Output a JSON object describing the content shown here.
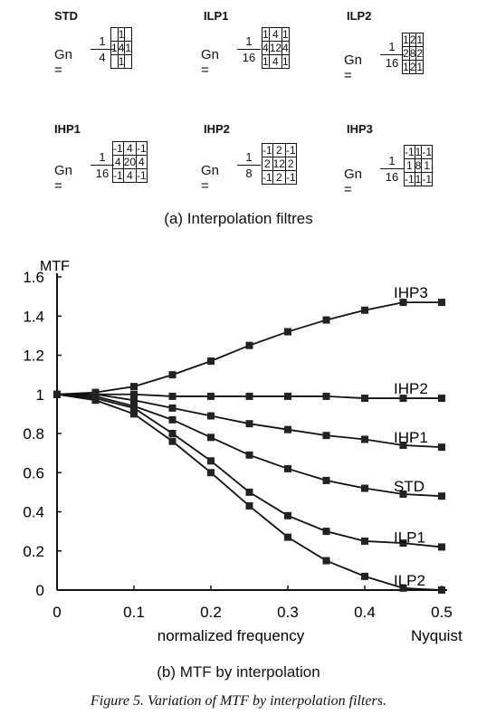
{
  "filters": [
    {
      "name": "STD",
      "gn": "Gn =",
      "num": "1",
      "den": "4",
      "kernel": [
        [
          "",
          "1",
          ""
        ],
        [
          "1",
          "4",
          "1"
        ],
        [
          "",
          "1",
          ""
        ]
      ]
    },
    {
      "name": "ILP1",
      "gn": "Gn =",
      "num": "1",
      "den": "16",
      "kernel": [
        [
          "1",
          "4",
          "1"
        ],
        [
          "4",
          "12",
          "4"
        ],
        [
          "1",
          "4",
          "1"
        ]
      ]
    },
    {
      "name": "ILP2",
      "gn": "Gn =",
      "num": "1",
      "den": "16",
      "kernel": [
        [
          "1",
          "2",
          "1"
        ],
        [
          "2",
          "8",
          "2"
        ],
        [
          "1",
          "2",
          "1"
        ]
      ]
    },
    {
      "name": "IHP1",
      "gn": "Gn =",
      "num": "1",
      "den": "16",
      "kernel": [
        [
          "-1",
          "4",
          "-1"
        ],
        [
          "4",
          "20",
          "4"
        ],
        [
          "-1",
          "4",
          "-1"
        ]
      ]
    },
    {
      "name": "IHP2",
      "gn": "Gn =",
      "num": "1",
      "den": "8",
      "kernel": [
        [
          "-1",
          "2",
          "-1"
        ],
        [
          "2",
          "12",
          "2"
        ],
        [
          "-1",
          "2",
          "-1"
        ]
      ]
    },
    {
      "name": "IHP3",
      "gn": "Gn =",
      "num": "1",
      "den": "16",
      "kernel": [
        [
          "-1",
          "1",
          "-1"
        ],
        [
          "1",
          "8",
          "1"
        ],
        [
          "-1",
          "1",
          "-1"
        ]
      ]
    }
  ],
  "caption_a": "(a) Interpolation filtres",
  "caption_b": "(b) MTF by interpolation",
  "figure_caption": "Figure 5. Variation of MTF by interpolation filters.",
  "chart_data": {
    "type": "line",
    "ylabel": "MTF",
    "xlabel": "normalized frequency",
    "x_end_label": "Nyquist",
    "xlim": [
      0,
      0.5
    ],
    "ylim": [
      0,
      1.6
    ],
    "x_ticks": [
      "0",
      "0.1",
      "0.2",
      "0.3",
      "0.4",
      "0.5"
    ],
    "y_ticks": [
      "0",
      "0.2",
      "0.4",
      "0.6",
      "0.8",
      "1",
      "1.2",
      "1.4",
      "1.6"
    ],
    "grid": false,
    "x": [
      0,
      0.05,
      0.1,
      0.15,
      0.2,
      0.25,
      0.3,
      0.35,
      0.4,
      0.45,
      0.5
    ],
    "series": [
      {
        "name": "IHP3",
        "values": [
          1.0,
          1.01,
          1.04,
          1.1,
          1.17,
          1.25,
          1.32,
          1.38,
          1.43,
          1.47,
          1.47
        ]
      },
      {
        "name": "IHP2",
        "values": [
          1.0,
          1.0,
          1.0,
          0.99,
          0.99,
          0.99,
          0.99,
          0.99,
          0.98,
          0.98,
          0.98
        ]
      },
      {
        "name": "IHP1",
        "values": [
          1.0,
          1.0,
          0.97,
          0.93,
          0.89,
          0.85,
          0.82,
          0.79,
          0.77,
          0.74,
          0.73
        ]
      },
      {
        "name": "STD",
        "values": [
          1.0,
          0.99,
          0.94,
          0.87,
          0.78,
          0.69,
          0.62,
          0.56,
          0.52,
          0.49,
          0.48
        ]
      },
      {
        "name": "ILP1",
        "values": [
          1.0,
          0.98,
          0.93,
          0.8,
          0.66,
          0.5,
          0.38,
          0.3,
          0.25,
          0.24,
          0.22
        ]
      },
      {
        "name": "ILP2",
        "values": [
          1.0,
          0.97,
          0.9,
          0.76,
          0.6,
          0.43,
          0.27,
          0.15,
          0.07,
          0.01,
          0.0
        ]
      }
    ]
  }
}
